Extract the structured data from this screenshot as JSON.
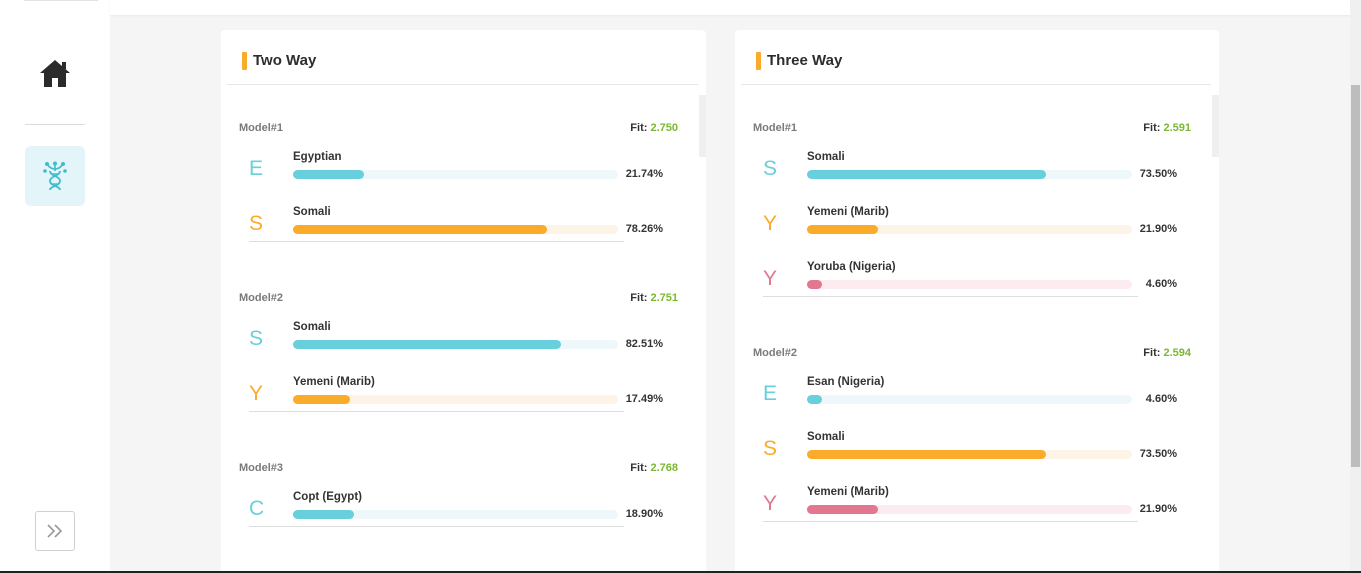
{
  "colors": {
    "cyan": "#68cfdc",
    "orange": "#fbab2a",
    "pink": "#e3778f",
    "accent": "#fbab2a",
    "fit": "#7bb832"
  },
  "sidebar": {
    "home_icon": "home-icon",
    "dna_icon": "dna-icon",
    "expand_icon": "double-chevron-right-icon",
    "expand_glyph": ">>"
  },
  "two_way": {
    "title": "Two Way",
    "models": [
      {
        "label": "Model#1",
        "fit_label": "Fit:",
        "fit": "2.750",
        "entries": [
          {
            "letter": "E",
            "name": "Egyptian",
            "percent": "21.74%",
            "value": 21.74,
            "color": "cyan"
          },
          {
            "letter": "S",
            "name": "Somali",
            "percent": "78.26%",
            "value": 78.26,
            "color": "orange"
          }
        ]
      },
      {
        "label": "Model#2",
        "fit_label": "Fit:",
        "fit": "2.751",
        "entries": [
          {
            "letter": "S",
            "name": "Somali",
            "percent": "82.51%",
            "value": 82.51,
            "color": "cyan"
          },
          {
            "letter": "Y",
            "name": "Yemeni (Marib)",
            "percent": "17.49%",
            "value": 17.49,
            "color": "orange"
          }
        ]
      },
      {
        "label": "Model#3",
        "fit_label": "Fit:",
        "fit": "2.768",
        "entries": [
          {
            "letter": "C",
            "name": "Copt (Egypt)",
            "percent": "18.90%",
            "value": 18.9,
            "color": "cyan"
          }
        ]
      }
    ]
  },
  "three_way": {
    "title": "Three Way",
    "models": [
      {
        "label": "Model#1",
        "fit_label": "Fit:",
        "fit": "2.591",
        "entries": [
          {
            "letter": "S",
            "name": "Somali",
            "percent": "73.50%",
            "value": 73.5,
            "color": "cyan"
          },
          {
            "letter": "Y",
            "name": "Yemeni (Marib)",
            "percent": "21.90%",
            "value": 21.9,
            "color": "orange"
          },
          {
            "letter": "Y",
            "name": "Yoruba (Nigeria)",
            "percent": "4.60%",
            "value": 4.6,
            "color": "pink"
          }
        ]
      },
      {
        "label": "Model#2",
        "fit_label": "Fit:",
        "fit": "2.594",
        "entries": [
          {
            "letter": "E",
            "name": "Esan (Nigeria)",
            "percent": "4.60%",
            "value": 4.6,
            "color": "cyan"
          },
          {
            "letter": "S",
            "name": "Somali",
            "percent": "73.50%",
            "value": 73.5,
            "color": "orange"
          },
          {
            "letter": "Y",
            "name": "Yemeni (Marib)",
            "percent": "21.90%",
            "value": 21.9,
            "color": "pink"
          }
        ]
      }
    ]
  }
}
